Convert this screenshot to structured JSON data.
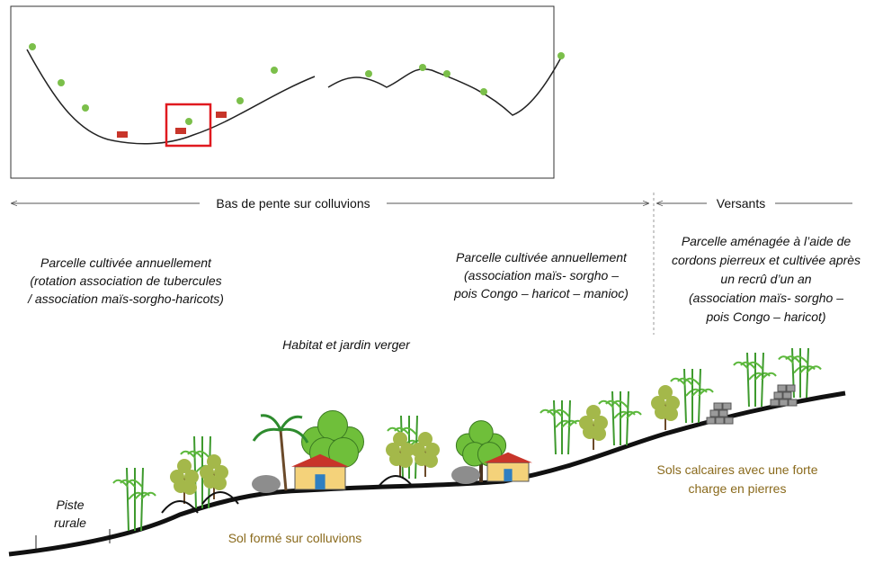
{
  "header": {
    "zones": [
      {
        "label": "Bas de pente sur colluvions"
      },
      {
        "label": "Versants"
      }
    ]
  },
  "annotations": [
    {
      "lines": [
        "Parcelle cultivée annuellement",
        "(rotation association de tubercules",
        "/ association maïs-sorgho-haricots)"
      ]
    },
    {
      "lines": [
        "Habitat et jardin verger"
      ]
    },
    {
      "lines": [
        "Parcelle cultivée annuellement",
        "(association maïs- sorgho –",
        "pois Congo – haricot – manioc)"
      ]
    },
    {
      "lines": [
        "Parcelle aménagée à l’aide de",
        "cordons pierreux et cultivée après",
        "un recrû d’un an",
        "(association maïs- sorgho –",
        "pois Congo – haricot)"
      ]
    },
    {
      "lines": [
        "Piste",
        "rurale"
      ]
    }
  ],
  "soils": [
    {
      "lines": [
        "Sol formé sur colluvions"
      ]
    },
    {
      "lines": [
        "Sols calcaires avec une forte",
        "charge en pierres"
      ]
    }
  ]
}
